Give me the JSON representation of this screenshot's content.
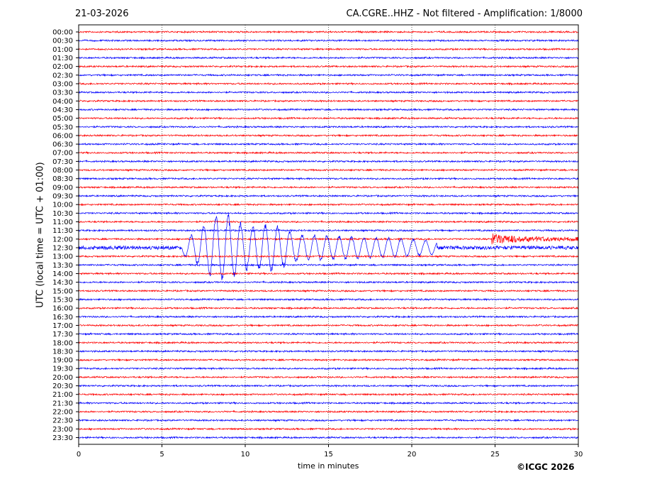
{
  "header": {
    "date": "21-03-2026",
    "title": "CA.CGRE..HHZ - Not filtered - Amplification: 1/8000"
  },
  "footer": {
    "copyright": "©ICGC 2026"
  },
  "chart_data": {
    "type": "line",
    "title": "CA.CGRE..HHZ - Not filtered - Amplification: 1/8000",
    "xlabel": "time in minutes",
    "ylabel": "UTC (local time = UTC + 01:00)",
    "xlim": [
      0,
      30
    ],
    "x_ticks": [
      0,
      5,
      10,
      15,
      20,
      25,
      30
    ],
    "x_tick_labels": [
      "0",
      "5",
      "10",
      "15",
      "20",
      "25",
      "30"
    ],
    "grid": "vertical dotted",
    "trace_colors": [
      "#ff0000",
      "#0000ff"
    ],
    "rows": [
      "00:00",
      "00:30",
      "01:00",
      "01:30",
      "02:00",
      "02:30",
      "03:00",
      "03:30",
      "04:00",
      "04:30",
      "05:00",
      "05:30",
      "06:00",
      "06:30",
      "07:00",
      "07:30",
      "08:00",
      "08:30",
      "09:00",
      "09:30",
      "10:00",
      "10:30",
      "11:00",
      "11:30",
      "12:00",
      "12:30",
      "13:00",
      "13:30",
      "14:00",
      "14:30",
      "15:00",
      "15:30",
      "16:00",
      "16:30",
      "17:00",
      "17:30",
      "18:00",
      "18:30",
      "19:00",
      "19:30",
      "20:00",
      "20:30",
      "21:00",
      "21:30",
      "22:00",
      "22:30",
      "23:00",
      "23:30"
    ],
    "events": [
      {
        "row": "12:30",
        "start_min": 6.2,
        "end_min": 21.5,
        "peak_min": 8.6
      },
      {
        "row": "12:00",
        "start_min": 24.8,
        "end_min": 30,
        "peak_min": 25.0
      }
    ]
  }
}
